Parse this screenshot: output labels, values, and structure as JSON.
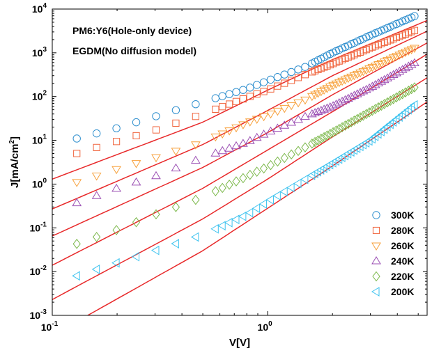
{
  "chart_data": {
    "type": "scatter",
    "title": "",
    "xlabel": "V[V]",
    "ylabel": "J[mA/cm^2]",
    "ylabel_parts": {
      "base": "J[mA/cm",
      "exp": "2",
      "tail": "]"
    },
    "xscale": "log",
    "yscale": "log",
    "xlim": [
      0.1,
      5.5
    ],
    "ylim": [
      0.001,
      10000
    ],
    "grid": false,
    "legend_position": "bottom-right",
    "x_ticks": [
      {
        "value": 0.1,
        "base": "10",
        "exp": "-1"
      },
      {
        "value": 1,
        "base": "10",
        "exp": "0"
      }
    ],
    "y_ticks": [
      {
        "value": 0.001,
        "base": "10",
        "exp": "-3"
      },
      {
        "value": 0.01,
        "base": "10",
        "exp": "-2"
      },
      {
        "value": 0.1,
        "base": "10",
        "exp": "-1"
      },
      {
        "value": 1,
        "base": "10",
        "exp": "0"
      },
      {
        "value": 10,
        "base": "10",
        "exp": "1"
      },
      {
        "value": 100,
        "base": "10",
        "exp": "2"
      },
      {
        "value": 1000,
        "base": "10",
        "exp": "3"
      },
      {
        "value": 10000,
        "base": "10",
        "exp": "4"
      }
    ],
    "annotations": [
      "PM6:Y6(Hole-only device)",
      "EGDM(No diffusion model)"
    ],
    "fit_line_color": "#e8292a",
    "series": [
      {
        "name": "300K",
        "marker": "circle",
        "color": "#2f8fce",
        "data_anchors": [
          [
            0.13,
            11
          ],
          [
            0.2,
            19
          ],
          [
            0.3,
            35
          ],
          [
            0.5,
            75
          ],
          [
            0.8,
            150
          ],
          [
            1.0,
            230
          ],
          [
            1.5,
            480
          ],
          [
            2.0,
            1000
          ],
          [
            3.0,
            2500
          ],
          [
            5.0,
            7500
          ]
        ],
        "fit_anchors": [
          [
            0.1,
            1.3
          ],
          [
            0.5,
            26
          ],
          [
            1.0,
            140
          ],
          [
            2.0,
            700
          ],
          [
            5.0,
            4500
          ]
        ]
      },
      {
        "name": "280K",
        "marker": "square",
        "color": "#f0643c",
        "data_anchors": [
          [
            0.13,
            5
          ],
          [
            0.2,
            9.5
          ],
          [
            0.3,
            17
          ],
          [
            0.5,
            40
          ],
          [
            0.8,
            95
          ],
          [
            1.0,
            140
          ],
          [
            1.5,
            320
          ],
          [
            2.0,
            560
          ],
          [
            3.0,
            1300
          ],
          [
            5.0,
            3500
          ]
        ],
        "fit_anchors": [
          [
            0.1,
            0.27
          ],
          [
            0.5,
            8
          ],
          [
            1.0,
            48
          ],
          [
            2.0,
            300
          ],
          [
            5.0,
            2500
          ]
        ]
      },
      {
        "name": "260K",
        "marker": "triangle-down",
        "color": "#f7a13c",
        "data_anchors": [
          [
            0.13,
            1.1
          ],
          [
            0.2,
            2.2
          ],
          [
            0.3,
            4
          ],
          [
            0.5,
            9
          ],
          [
            0.8,
            25
          ],
          [
            1.0,
            38
          ],
          [
            1.5,
            85
          ],
          [
            2.0,
            180
          ],
          [
            3.0,
            450
          ],
          [
            5.0,
            1400
          ]
        ],
        "fit_anchors": [
          [
            0.1,
            0.065
          ],
          [
            0.5,
            2.4
          ],
          [
            1.0,
            15
          ],
          [
            2.0,
            110
          ],
          [
            5.0,
            1300
          ]
        ]
      },
      {
        "name": "240K",
        "marker": "triangle-up",
        "color": "#9b4fb3",
        "data_anchors": [
          [
            0.13,
            0.37
          ],
          [
            0.2,
            0.8
          ],
          [
            0.3,
            1.5
          ],
          [
            0.5,
            4
          ],
          [
            0.8,
            9
          ],
          [
            1.0,
            15
          ],
          [
            1.5,
            35
          ],
          [
            2.0,
            60
          ],
          [
            3.0,
            160
          ],
          [
            5.0,
            650
          ]
        ],
        "fit_anchors": [
          [
            0.1,
            0.014
          ],
          [
            0.5,
            0.8
          ],
          [
            1.0,
            6
          ],
          [
            2.0,
            45
          ],
          [
            5.0,
            700
          ]
        ]
      },
      {
        "name": "220K",
        "marker": "diamond",
        "color": "#7bb84a",
        "data_anchors": [
          [
            0.13,
            0.043
          ],
          [
            0.2,
            0.09
          ],
          [
            0.3,
            0.2
          ],
          [
            0.5,
            0.5
          ],
          [
            0.8,
            1.5
          ],
          [
            1.0,
            2.5
          ],
          [
            1.5,
            7
          ],
          [
            2.0,
            15
          ],
          [
            3.0,
            45
          ],
          [
            5.0,
            180
          ]
        ],
        "fit_anchors": [
          [
            0.1,
            0.0023
          ],
          [
            0.5,
            0.16
          ],
          [
            1.0,
            1.3
          ],
          [
            2.0,
            12
          ],
          [
            5.0,
            200
          ]
        ]
      },
      {
        "name": "200K",
        "marker": "triangle-left",
        "color": "#3ec3ef",
        "data_anchors": [
          [
            0.13,
            0.008
          ],
          [
            0.2,
            0.016
          ],
          [
            0.3,
            0.03
          ],
          [
            0.5,
            0.07
          ],
          [
            0.8,
            0.2
          ],
          [
            1.0,
            0.4
          ],
          [
            1.5,
            1.3
          ],
          [
            2.0,
            3
          ],
          [
            3.0,
            10
          ],
          [
            5.0,
            75
          ]
        ],
        "fit_anchors": [
          [
            0.1,
            0.00035
          ],
          [
            0.5,
            0.03
          ],
          [
            1.0,
            0.28
          ],
          [
            2.0,
            2.6
          ],
          [
            5.0,
            55
          ]
        ]
      }
    ]
  }
}
